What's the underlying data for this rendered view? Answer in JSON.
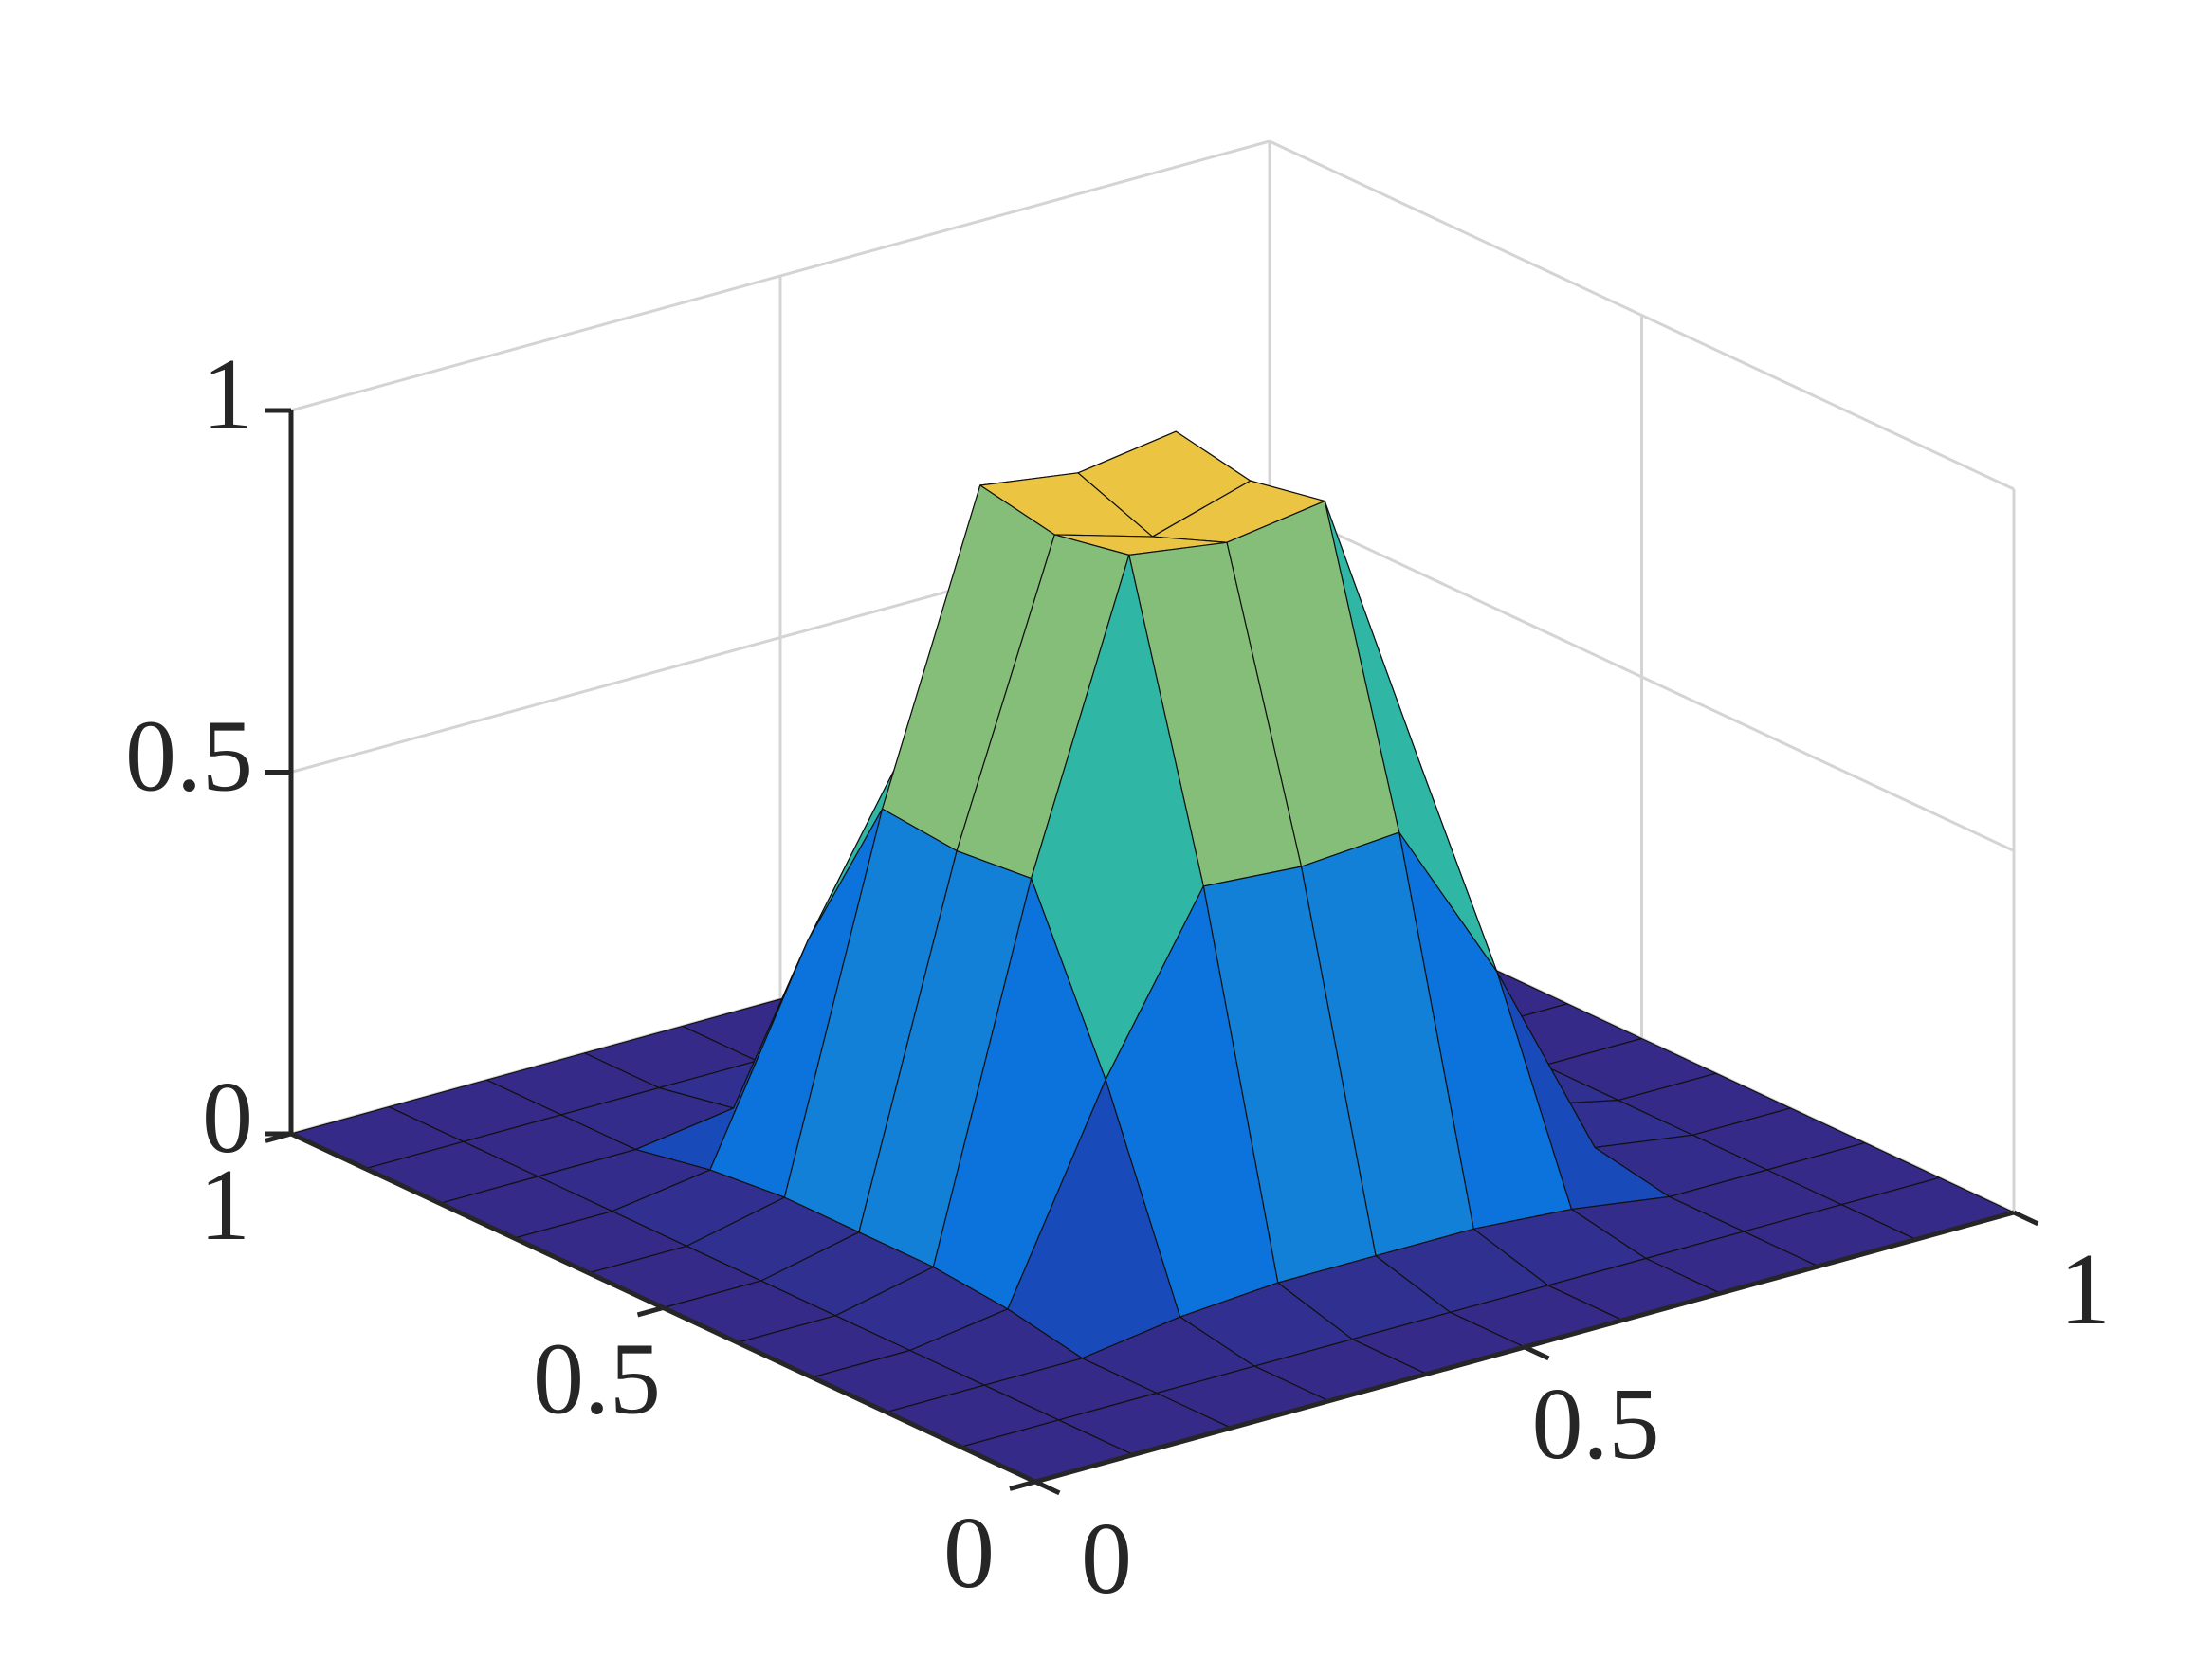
{
  "chart_data": {
    "type": "surface",
    "x": [
      0,
      0.1,
      0.2,
      0.3,
      0.4,
      0.5,
      0.6,
      0.7,
      0.8,
      0.9,
      1
    ],
    "y": [
      0,
      0.1,
      0.2,
      0.3,
      0.4,
      0.5,
      0.6,
      0.7,
      0.8,
      0.9,
      1
    ],
    "z": [
      [
        0,
        0,
        0,
        0,
        0,
        0,
        0,
        0,
        0,
        0,
        0
      ],
      [
        0,
        0,
        0,
        0,
        0,
        0,
        0,
        0,
        0,
        0,
        0
      ],
      [
        0,
        0,
        0,
        0.02,
        0.03,
        0.03,
        0.03,
        0.02,
        0,
        0,
        0
      ],
      [
        0,
        0,
        0.02,
        0.3,
        0.53,
        0.52,
        0.53,
        0.3,
        0.02,
        0,
        0
      ],
      [
        0,
        0,
        0.03,
        0.53,
        0.94,
        0.92,
        0.94,
        0.53,
        0.03,
        0,
        0
      ],
      [
        0,
        0,
        0.03,
        0.52,
        0.92,
        0.88,
        0.92,
        0.52,
        0.03,
        0,
        0
      ],
      [
        0,
        0,
        0.03,
        0.53,
        0.94,
        0.92,
        0.94,
        0.53,
        0.03,
        0,
        0
      ],
      [
        0,
        0,
        0.02,
        0.3,
        0.53,
        0.52,
        0.53,
        0.3,
        0.02,
        0,
        0
      ],
      [
        0,
        0,
        0,
        0.02,
        0.03,
        0.03,
        0.03,
        0.02,
        0,
        0,
        0
      ],
      [
        0,
        0,
        0,
        0,
        0,
        0,
        0,
        0,
        0,
        0,
        0
      ],
      [
        0,
        0,
        0,
        0,
        0,
        0,
        0,
        0,
        0,
        0,
        0
      ]
    ],
    "xlim": [
      0,
      1
    ],
    "ylim": [
      0,
      1
    ],
    "zlim": [
      0,
      1
    ],
    "xticks": [
      0,
      0.5,
      1
    ],
    "yticks": [
      0,
      0.5,
      1
    ],
    "zticks": [
      0,
      0.5,
      1
    ],
    "grid": true,
    "colormap": "parula"
  }
}
